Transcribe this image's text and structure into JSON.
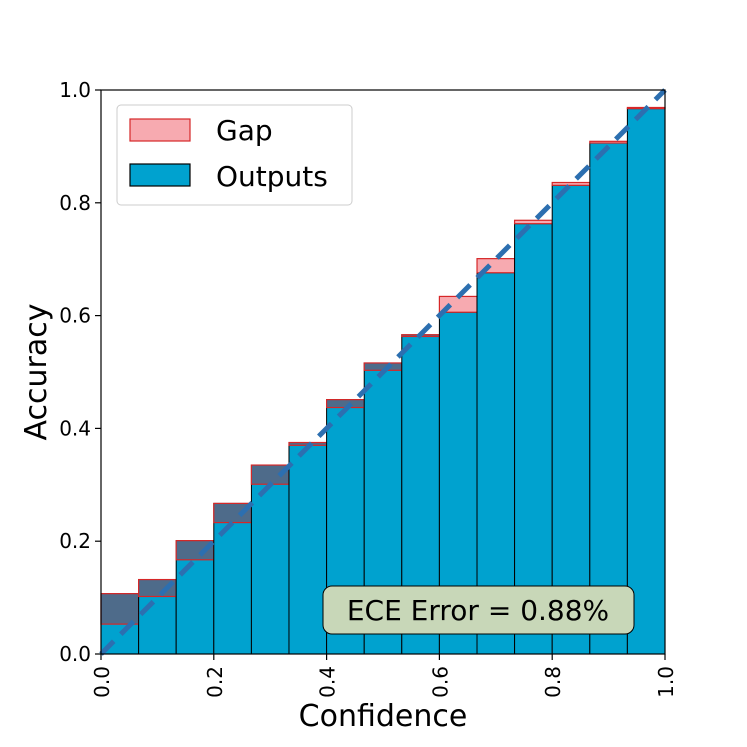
{
  "chart_data": {
    "type": "bar",
    "xlabel": "Confidence",
    "ylabel": "Accuracy",
    "xlim": [
      0,
      1
    ],
    "ylim": [
      0,
      1
    ],
    "x_ticks": [
      "0.0",
      "0.2",
      "0.4",
      "0.6",
      "0.8",
      "1.0"
    ],
    "y_ticks": [
      "0.0",
      "0.2",
      "0.4",
      "0.6",
      "0.8",
      "1.0"
    ],
    "grid": false,
    "legend_position": "top-left",
    "bin_edges": [
      0.0,
      0.0667,
      0.1333,
      0.2,
      0.2667,
      0.3333,
      0.4,
      0.4667,
      0.5333,
      0.6,
      0.6667,
      0.7333,
      0.8,
      0.8667,
      0.9333,
      1.0
    ],
    "series": [
      {
        "name": "Outputs",
        "values": [
          0.107,
          0.132,
          0.201,
          0.267,
          0.335,
          0.375,
          0.451,
          0.516,
          0.566,
          0.606,
          0.676,
          0.763,
          0.831,
          0.906,
          0.967
        ]
      },
      {
        "name": "Gap",
        "lower": [
          0.053,
          0.102,
          0.167,
          0.233,
          0.301,
          0.37,
          0.437,
          0.503,
          0.563,
          0.606,
          0.676,
          0.763,
          0.831,
          0.906,
          0.967
        ],
        "upper": [
          0.107,
          0.132,
          0.201,
          0.267,
          0.335,
          0.375,
          0.451,
          0.516,
          0.566,
          0.634,
          0.701,
          0.769,
          0.836,
          0.909,
          0.969
        ]
      }
    ],
    "diagonal": [
      [
        0,
        0
      ],
      [
        1,
        1
      ]
    ],
    "annotation": "ECE Error = 0.88%",
    "colors": {
      "outputs": "#00a2cf",
      "gap_fill": "#f7aab0",
      "gap_edge": "#d62728",
      "overlap": "#4e6b8a",
      "diagonal": "#2c6fb0",
      "annotation_bg": "#c8d7b8"
    }
  }
}
